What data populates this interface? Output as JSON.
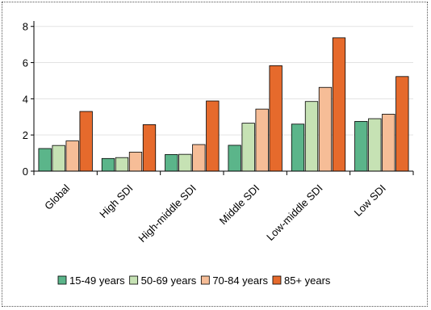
{
  "chart_data": {
    "type": "bar",
    "categories": [
      "Global",
      "High SDI",
      "High-middle SDI",
      "Middle SDI",
      "Low-middle SDI",
      "Low SDI"
    ],
    "series": [
      {
        "name": "15-49 years",
        "color": "#5bb58a",
        "values": [
          1.25,
          0.7,
          0.92,
          1.43,
          2.6,
          2.75
        ]
      },
      {
        "name": "50-69 years",
        "color": "#c6e2b4",
        "values": [
          1.42,
          0.75,
          0.93,
          2.65,
          3.85,
          2.9
        ]
      },
      {
        "name": "70-84 years",
        "color": "#f6bd97",
        "values": [
          1.67,
          1.05,
          1.47,
          3.43,
          4.63,
          3.15
        ]
      },
      {
        "name": "85+ years",
        "color": "#e66a2c",
        "values": [
          3.3,
          2.57,
          3.88,
          5.83,
          7.37,
          5.23
        ]
      }
    ],
    "yticks": [
      0,
      2,
      4,
      6,
      8
    ],
    "ylim": [
      0,
      8.3
    ],
    "grid": true,
    "legend": "bottom"
  }
}
